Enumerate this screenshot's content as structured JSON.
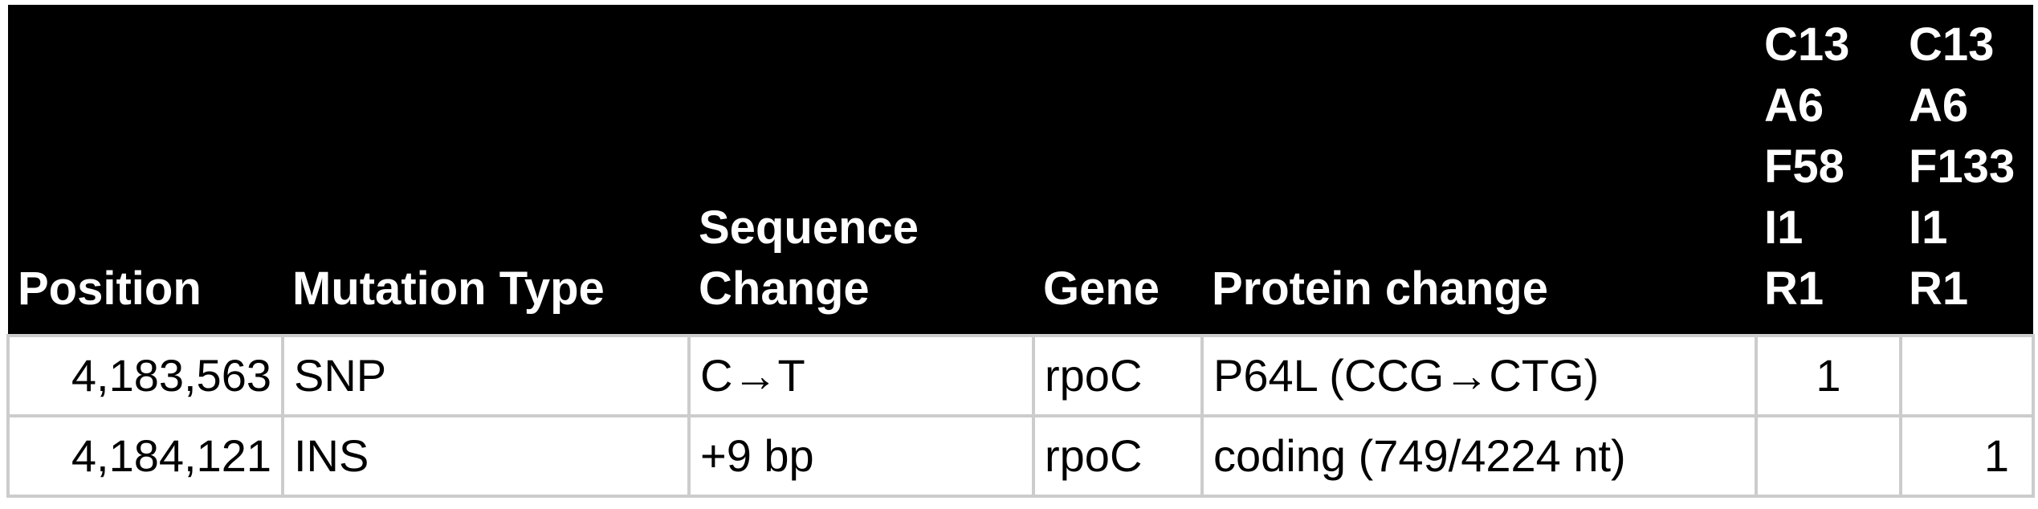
{
  "table": {
    "headers": [
      "Position",
      "Mutation Type",
      "Sequence\nChange",
      "Gene",
      "Protein change",
      "C13\nA6\nF58\nI1\nR1",
      "C13\nA6\nF133\nI1\nR1"
    ],
    "rows": [
      {
        "position": "4,183,563",
        "mutation_type": "SNP",
        "sequence_change": "C→T",
        "gene": "rpoC",
        "protein_change": "P64L (CCG→CTG)",
        "sample_1": "1",
        "sample_2": ""
      },
      {
        "position": "4,184,121",
        "mutation_type": "INS",
        "sequence_change": "+9 bp",
        "gene": "rpoC",
        "protein_change": "coding (749/4224 nt)",
        "sample_1": "",
        "sample_2": "1"
      }
    ]
  }
}
